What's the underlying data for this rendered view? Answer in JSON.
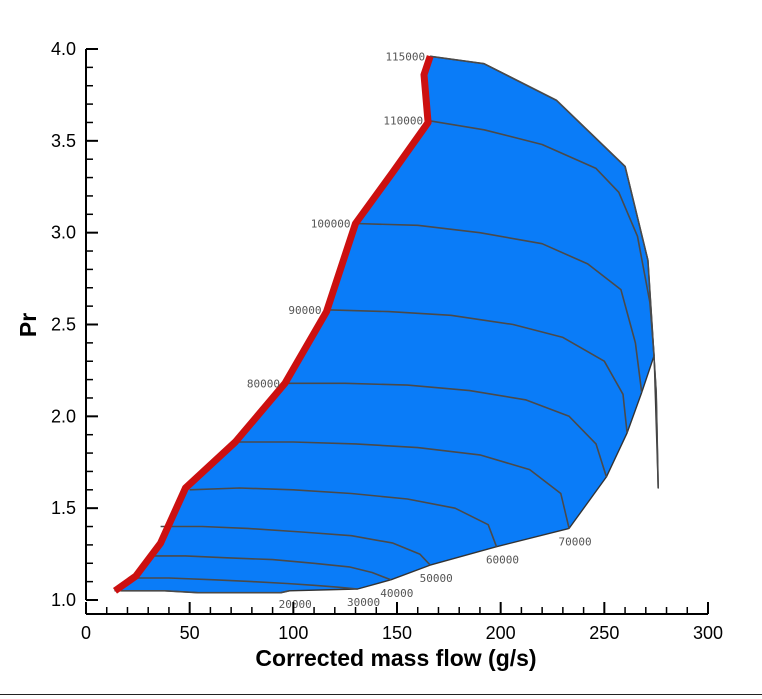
{
  "chart_data": {
    "type": "area",
    "xlabel": "Corrected mass flow (g/s)",
    "ylabel": "Pr",
    "xlim": [
      0,
      300
    ],
    "ylim": [
      1.0,
      4.0
    ],
    "x_ticks": [
      "0",
      "50",
      "100",
      "150",
      "200",
      "250",
      "300"
    ],
    "y_ticks": [
      "1.0",
      "1.5",
      "2.0",
      "2.5",
      "3.0",
      "3.5",
      "4.0"
    ],
    "grid": false,
    "colors": {
      "map_fill": "#0a7cf8",
      "surge_line": "#cc1010",
      "speed_line": "#4a4a4a",
      "outline": "#333333"
    },
    "surge_line": {
      "x": [
        14,
        24,
        36,
        48,
        72,
        96,
        116,
        130,
        148,
        165,
        163,
        166
      ],
      "y": [
        1.05,
        1.13,
        1.31,
        1.61,
        1.86,
        2.18,
        2.57,
        3.05,
        3.33,
        3.6,
        3.86,
        3.96
      ]
    },
    "speed_lines": [
      {
        "label": "20000",
        "x": [
          17,
          25,
          38,
          54,
          69,
          82,
          94,
          98
        ],
        "y": [
          1.05,
          1.05,
          1.05,
          1.04,
          1.04,
          1.04,
          1.04,
          1.05
        ]
      },
      {
        "label": "30000",
        "x": [
          24,
          40,
          62,
          80,
          97,
          110,
          121,
          131
        ],
        "y": [
          1.12,
          1.12,
          1.11,
          1.1,
          1.09,
          1.08,
          1.07,
          1.06
        ]
      },
      {
        "label": "40000",
        "x": [
          31,
          48,
          68,
          90,
          110,
          127,
          138,
          147
        ],
        "y": [
          1.24,
          1.24,
          1.23,
          1.22,
          1.2,
          1.18,
          1.15,
          1.11
        ]
      },
      {
        "label": "50000",
        "x": [
          36,
          56,
          78,
          104,
          128,
          148,
          161,
          166
        ],
        "y": [
          1.4,
          1.4,
          1.39,
          1.37,
          1.35,
          1.31,
          1.25,
          1.19
        ]
      },
      {
        "label": "60000",
        "x": [
          50,
          74,
          100,
          128,
          155,
          178,
          194,
          198
        ],
        "y": [
          1.6,
          1.61,
          1.6,
          1.58,
          1.55,
          1.5,
          1.41,
          1.29
        ]
      },
      {
        "label": "70000",
        "x": [
          72,
          100,
          130,
          160,
          190,
          214,
          229,
          233
        ],
        "y": [
          1.86,
          1.86,
          1.85,
          1.83,
          1.79,
          1.71,
          1.58,
          1.39
        ]
      },
      {
        "label": "80000",
        "x": [
          96,
          125,
          155,
          185,
          212,
          233,
          246,
          251
        ],
        "y": [
          2.18,
          2.18,
          2.17,
          2.14,
          2.09,
          2.0,
          1.85,
          1.67
        ]
      },
      {
        "label": "90000",
        "x": [
          116,
          146,
          176,
          206,
          230,
          250,
          259,
          261
        ],
        "y": [
          2.58,
          2.57,
          2.55,
          2.5,
          2.43,
          2.3,
          2.12,
          1.91
        ]
      },
      {
        "label": "100000",
        "x": [
          130,
          160,
          190,
          220,
          242,
          258,
          265,
          268
        ],
        "y": [
          3.05,
          3.04,
          3.0,
          2.94,
          2.83,
          2.69,
          2.4,
          2.13
        ]
      },
      {
        "label": "110000",
        "x": [
          165,
          192,
          220,
          246,
          257,
          266,
          272,
          274
        ],
        "y": [
          3.61,
          3.56,
          3.48,
          3.35,
          3.22,
          2.98,
          2.62,
          2.33
        ]
      },
      {
        "label": "115000",
        "x": [
          166,
          192,
          227,
          260,
          271,
          273,
          275,
          276
        ],
        "y": [
          3.96,
          3.92,
          3.72,
          3.36,
          2.85,
          2.5,
          2.13,
          1.61
        ]
      }
    ],
    "extra_labels": [
      "20000",
      "30000",
      "40000",
      "50000",
      "60000",
      "70000"
    ]
  }
}
